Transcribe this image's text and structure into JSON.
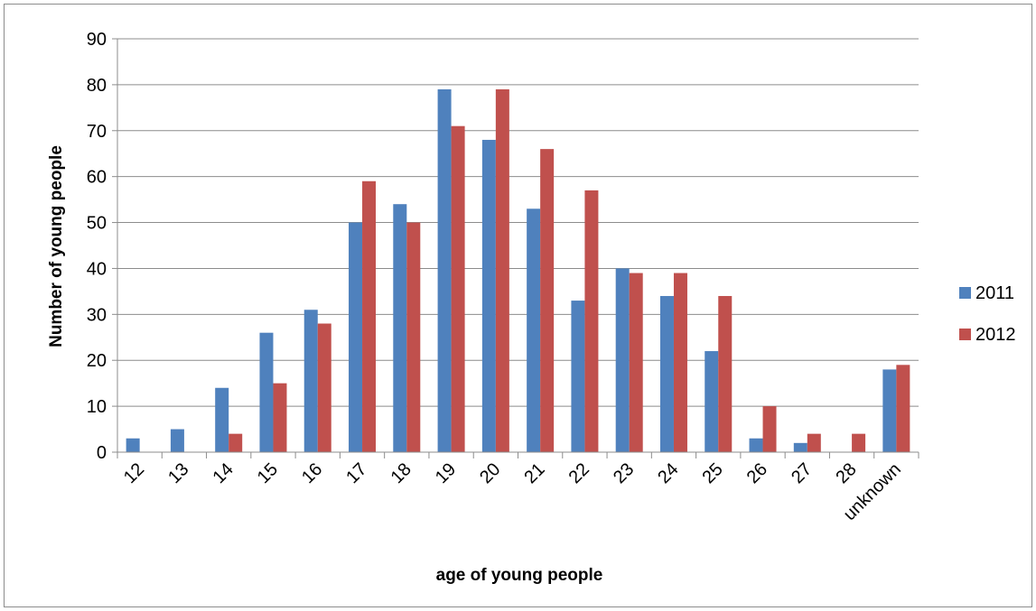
{
  "chart_data": {
    "type": "bar",
    "title": "",
    "xlabel": "age of young people",
    "ylabel": "Number of young people",
    "categories": [
      "12",
      "13",
      "14",
      "15",
      "16",
      "17",
      "18",
      "19",
      "20",
      "21",
      "22",
      "23",
      "24",
      "25",
      "26",
      "27",
      "28",
      "unknown"
    ],
    "series": [
      {
        "name": "2011",
        "color": "#4f81bd",
        "values": [
          3,
          5,
          14,
          26,
          31,
          50,
          54,
          79,
          68,
          53,
          33,
          40,
          34,
          22,
          3,
          2,
          0,
          18
        ]
      },
      {
        "name": "2012",
        "color": "#c0504d",
        "values": [
          0,
          0,
          4,
          15,
          28,
          59,
          50,
          71,
          79,
          66,
          57,
          39,
          39,
          34,
          10,
          4,
          4,
          19
        ]
      }
    ],
    "ylim": [
      0,
      90
    ],
    "yticks": [
      0,
      10,
      20,
      30,
      40,
      50,
      60,
      70,
      80,
      90
    ],
    "grid": true,
    "legend_position": "right"
  }
}
